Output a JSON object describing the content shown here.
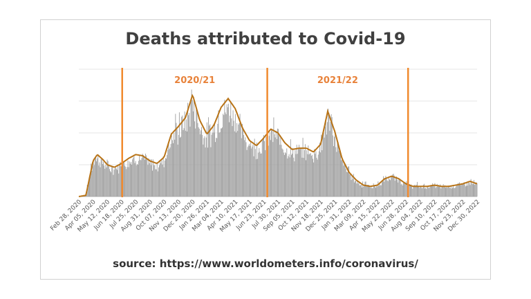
{
  "chart_data": {
    "type": "bar",
    "title": "Deaths attributed to Covid-19",
    "source": "source: https://www.worldometers.info/coronavirus/",
    "xlabel": "",
    "ylabel": "",
    "grid": true,
    "colors": {
      "bars": "#9e9e9e",
      "line": "#b87316",
      "markers": "#f08a2e",
      "season_text": "#e8823a"
    },
    "x_ticks": [
      "Feb 28, 2020",
      "Apr 05, 2020",
      "May 12, 2020",
      "Jun 18, 2020",
      "Jul 25, 2020",
      "Aug 31, 2020",
      "Oct 07, 2020",
      "Nov 13, 2020",
      "Dec 20, 2020",
      "Jan 26, 2021",
      "Mar 04, 2021",
      "Apr 10, 2021",
      "May 17, 2021",
      "Jun 23, 2021",
      "Jul 30, 2021",
      "Sep 05, 2021",
      "Oct 12, 2021",
      "Nov 18, 2021",
      "Dec 25, 2021",
      "Jan 31, 2022",
      "Mar 09, 2022",
      "Apr 15, 2022",
      "May 22, 2022",
      "Jun 28, 2022",
      "Aug 04, 2022",
      "Sep 10, 2022",
      "Oct 17, 2022",
      "Nov 23, 2022",
      "Dec 30, 2022"
    ],
    "season_markers": [
      {
        "after_tick": "Jun 18, 2020",
        "offset": 0.05
      },
      {
        "after_tick": "Jun 23, 2021",
        "offset": 0.25
      },
      {
        "after_tick": "Jun 28, 2022",
        "offset": 0.15
      }
    ],
    "season_labels": [
      "2020/21",
      "2021/22"
    ],
    "ylim": [
      0,
      1
    ],
    "relative_level": {
      "x": [
        0,
        0.5,
        1.0,
        1.3,
        1.7,
        2.0,
        2.5,
        3.0,
        3.5,
        4.0,
        4.5,
        5.0,
        5.5,
        6.0,
        6.5,
        7.0,
        7.5,
        8.0,
        8.5,
        9.0,
        9.5,
        10.0,
        10.5,
        11.0,
        11.5,
        12.0,
        12.5,
        13.0,
        13.5,
        14.0,
        14.5,
        15.0,
        15.5,
        16.0,
        16.5,
        17.0,
        17.5,
        18.0,
        18.5,
        19.0,
        19.5,
        20.0,
        20.5,
        21.0,
        21.5,
        22.0,
        22.5,
        23.0,
        23.5,
        24.0,
        24.5,
        25.0,
        25.5,
        26.0,
        26.5,
        27.0,
        27.5,
        28.0
      ],
      "smoothed": [
        0.0,
        0.01,
        0.28,
        0.33,
        0.29,
        0.25,
        0.23,
        0.26,
        0.3,
        0.33,
        0.32,
        0.28,
        0.26,
        0.31,
        0.49,
        0.55,
        0.62,
        0.8,
        0.6,
        0.49,
        0.56,
        0.7,
        0.77,
        0.69,
        0.54,
        0.44,
        0.4,
        0.46,
        0.53,
        0.5,
        0.42,
        0.37,
        0.38,
        0.38,
        0.35,
        0.41,
        0.67,
        0.51,
        0.3,
        0.19,
        0.13,
        0.09,
        0.08,
        0.09,
        0.14,
        0.16,
        0.14,
        0.1,
        0.08,
        0.08,
        0.08,
        0.09,
        0.08,
        0.08,
        0.09,
        0.1,
        0.12,
        0.1
      ],
      "peak": [
        0.0,
        0.02,
        0.42,
        0.38,
        0.34,
        0.3,
        0.28,
        0.32,
        0.36,
        0.38,
        0.38,
        0.34,
        0.32,
        0.4,
        0.62,
        0.72,
        0.85,
        0.92,
        0.72,
        0.62,
        0.7,
        0.82,
        0.88,
        0.8,
        0.64,
        0.54,
        0.5,
        0.56,
        0.66,
        0.62,
        0.52,
        0.46,
        0.46,
        0.46,
        0.44,
        0.54,
        0.8,
        0.62,
        0.38,
        0.26,
        0.18,
        0.14,
        0.12,
        0.13,
        0.18,
        0.2,
        0.18,
        0.14,
        0.12,
        0.12,
        0.12,
        0.13,
        0.12,
        0.12,
        0.13,
        0.14,
        0.15,
        0.14
      ]
    }
  }
}
